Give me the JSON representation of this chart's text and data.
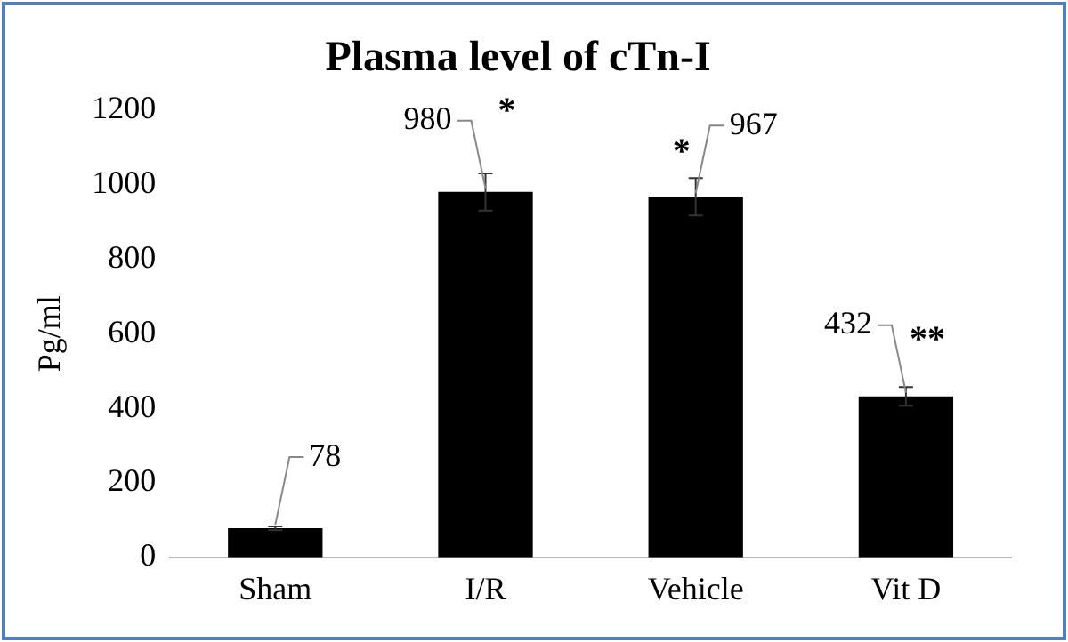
{
  "chart_data": {
    "type": "bar",
    "title": "Plasma level of cTn-I",
    "ylabel": "Pg/ml",
    "categories": [
      "Sham",
      "I/R",
      "Vehicle",
      "Vit D"
    ],
    "values": [
      78,
      980,
      967,
      432
    ],
    "color": "#000000",
    "errors": [
      5,
      50,
      50,
      25
    ],
    "data_labels": true,
    "ylim": [
      0,
      1200
    ],
    "yticks": [
      0,
      200,
      400,
      600,
      800,
      1000,
      1200
    ],
    "grid": false,
    "legend": false,
    "annotations": [
      {
        "text": "*",
        "x": "I/R",
        "y": 980
      },
      {
        "text": "*",
        "x": "Vehicle",
        "y": 967
      },
      {
        "text": "**",
        "x": "Vit D",
        "y": 432
      }
    ]
  }
}
